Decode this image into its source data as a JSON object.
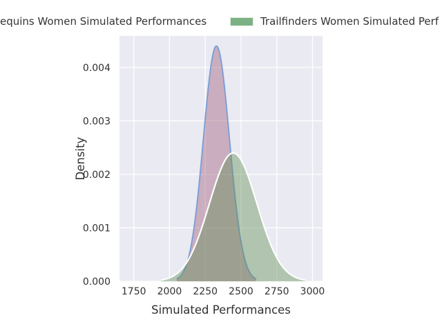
{
  "legend": {
    "items": [
      {
        "label": "equins Women Simulated Performances",
        "swatch_visible": false,
        "swatch_color": null
      },
      {
        "label": "Trailfinders Women Simulated Perf",
        "swatch_visible": true,
        "swatch_color": "#7cb184"
      }
    ]
  },
  "chart_data": {
    "type": "area",
    "subtype": "kde-density",
    "title": "",
    "xlabel": "Simulated Performances",
    "ylabel": "Density",
    "xlim": [
      1650,
      3070
    ],
    "ylim": [
      0,
      0.00459
    ],
    "xticks": [
      1750,
      2000,
      2250,
      2500,
      2750,
      3000
    ],
    "ytick_labels": [
      "0.000",
      "0.001",
      "0.002",
      "0.003",
      "0.004"
    ],
    "ytick_values": [
      0,
      0.001,
      0.002,
      0.003,
      0.004
    ],
    "grid": true,
    "background_color": "#eaeaf2",
    "gridline_color": "#ffffff",
    "legend_position": "top",
    "series": [
      {
        "name": "equins Women Simulated Performances",
        "distribution": "normal",
        "mean": 2328,
        "sd": 91,
        "peak_density": 0.0044,
        "line_color": "#7f9fd6",
        "fill_color": "rgba(154,82,112,0.40)"
      },
      {
        "name": "Trailfinders Women Simulated Perf",
        "distribution": "normal",
        "mean": 2445,
        "sd": 166,
        "peak_density": 0.0024,
        "line_color": "#fdfefd",
        "fill_color": "rgba(95,142,84,0.42)"
      }
    ]
  }
}
